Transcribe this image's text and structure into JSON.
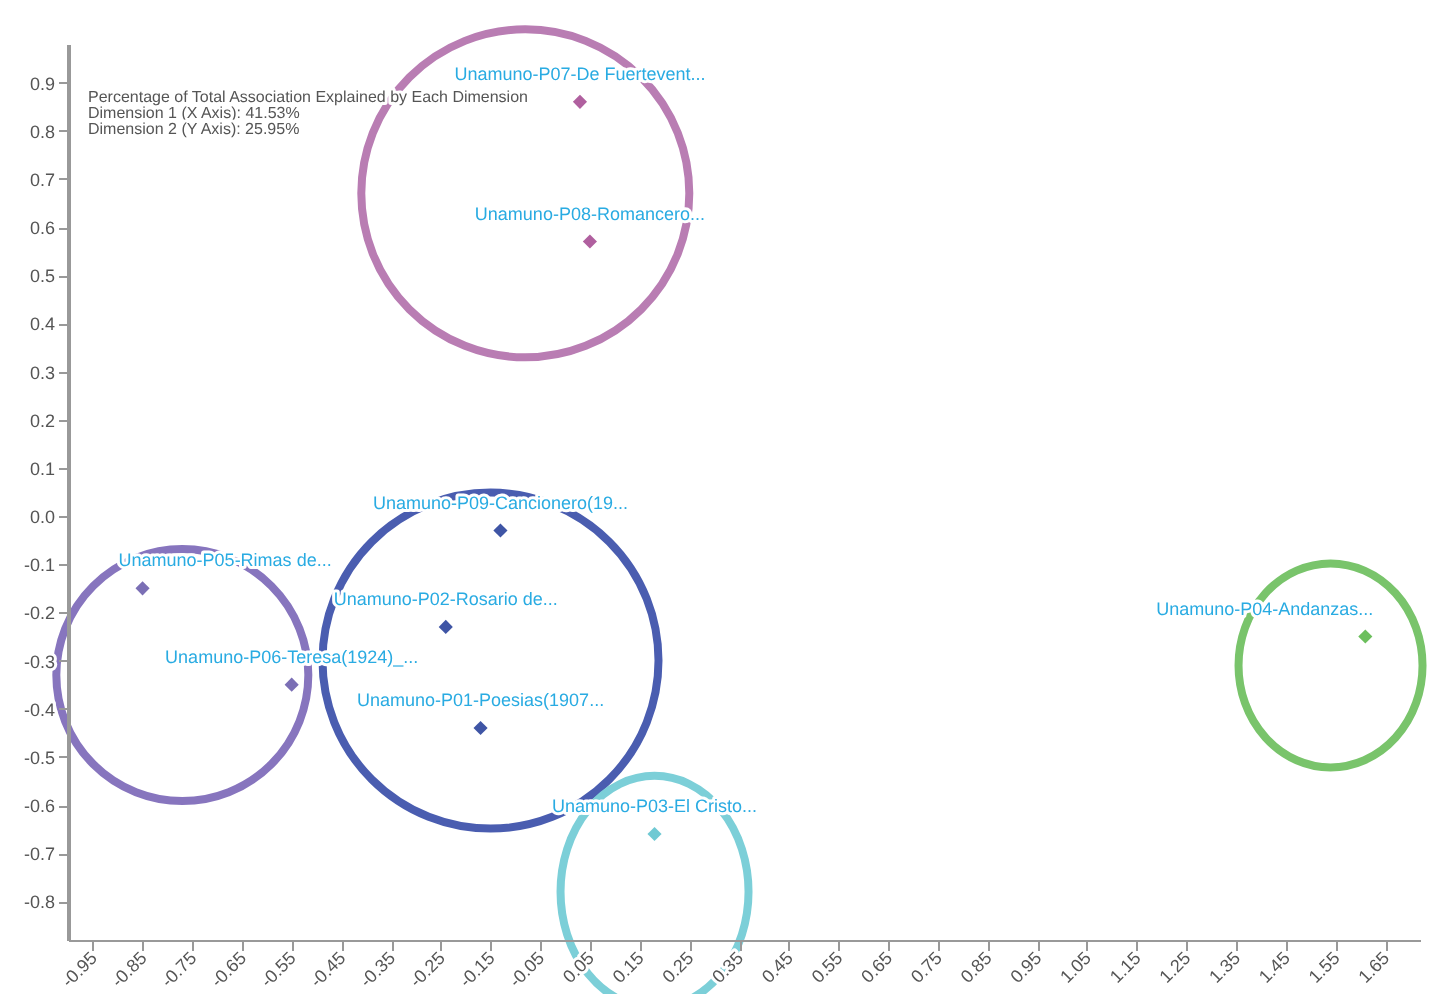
{
  "chart_data": {
    "type": "scatter",
    "annotations": [
      "Percentage of Total Association Explained by Each Dimension",
      "Dimension 1 (X Axis): 41.53%",
      "Dimension 2 (Y Axis): 25.95%"
    ],
    "series": [
      {
        "name": "Unamuno-P07-De Fuertevent...",
        "color": "#b0609f",
        "x": [
          0.03
        ],
        "values": [
          0.86
        ]
      },
      {
        "name": "Unamuno-P08-Romancero...",
        "color": "#b0609f",
        "x": [
          0.05
        ],
        "values": [
          0.57
        ]
      },
      {
        "name": "Unamuno-P09-Cancionero(19...",
        "color": "#3f55a5",
        "x": [
          -0.13
        ],
        "values": [
          -0.03
        ]
      },
      {
        "name": "Unamuno-P05-Rimas de...",
        "color": "#7b6fb5",
        "x": [
          -0.85
        ],
        "values": [
          -0.15
        ]
      },
      {
        "name": "Unamuno-P02-Rosario de...",
        "color": "#3f55a5",
        "x": [
          -0.24
        ],
        "values": [
          -0.23
        ]
      },
      {
        "name": "Unamuno-P06-Teresa(1924)_...",
        "color": "#7b6fb5",
        "x": [
          -0.55
        ],
        "values": [
          -0.35
        ]
      },
      {
        "name": "Unamuno-P01-Poesias(1907...",
        "color": "#3f55a5",
        "x": [
          -0.17
        ],
        "values": [
          -0.44
        ]
      },
      {
        "name": "Unamuno-P03-El Cristo...",
        "color": "#6fc9d3",
        "x": [
          0.18
        ],
        "values": [
          -0.66
        ]
      },
      {
        "name": "Unamuno-P04-Andanzas...",
        "color": "#6cbf5d",
        "x": [
          1.61
        ],
        "values": [
          -0.25
        ]
      }
    ],
    "xlim": [
      -1.0,
      1.72
    ],
    "ylim": [
      -0.88,
      0.98
    ],
    "xticks": [
      -0.95,
      -0.85,
      -0.75,
      -0.65,
      -0.55,
      -0.45,
      -0.35,
      -0.25,
      -0.15,
      -0.05,
      0.05,
      0.15,
      0.25,
      0.35,
      0.45,
      0.55,
      0.65,
      0.75,
      0.85,
      0.95,
      1.05,
      1.15,
      1.25,
      1.35,
      1.45,
      1.55,
      1.65
    ],
    "yticks": [
      -0.8,
      -0.7,
      -0.6,
      -0.5,
      -0.4,
      -0.3,
      -0.2,
      -0.1,
      {
        "value": 0,
        "label": "0.0"
      },
      0.1,
      0.2,
      0.3,
      0.4,
      0.5,
      0.6,
      0.7,
      0.8,
      0.9
    ],
    "marker": "diamond",
    "legend": false,
    "grid": false
  }
}
